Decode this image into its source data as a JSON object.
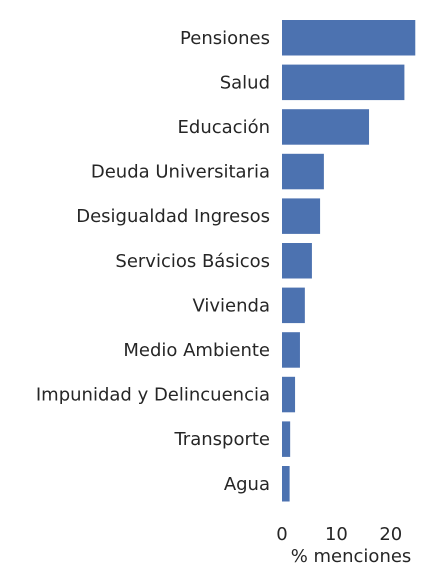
{
  "chart_data": {
    "type": "bar",
    "orientation": "horizontal",
    "categories": [
      "Pensiones",
      "Salud",
      "Educación",
      "Deuda Universitaria",
      "Desigualdad Ingresos",
      "Servicios Básicos",
      "Vivienda",
      "Medio Ambiente",
      "Impunidad y Delincuencia",
      "Transporte",
      "Agua"
    ],
    "values": [
      24.5,
      22.5,
      16.0,
      7.7,
      7.0,
      5.5,
      4.2,
      3.3,
      2.4,
      1.5,
      1.4
    ],
    "title": "",
    "xlabel": "% menciones",
    "ylabel": "",
    "xlim": [
      0,
      25
    ],
    "xticks": [
      0,
      10,
      20
    ],
    "grid": false,
    "legend": "none",
    "bar_color": "#4c72b0"
  }
}
